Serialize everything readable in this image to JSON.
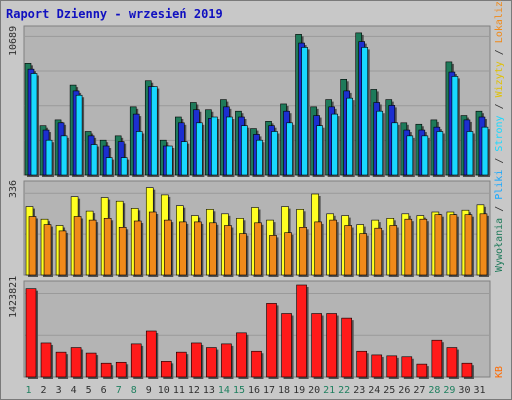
{
  "title": "Raport Dzienny -  wrzesień 2019",
  "colors": {
    "background": "#c8c8c8",
    "plot_bg": "#b4b4b4",
    "grid": "#9a9a9a",
    "visits": "#1e7a5a",
    "pages": "#1c2fd0",
    "files": "#18d8ff",
    "hits": "#ffff22",
    "sites": "#f08a1a",
    "kb": "#ff1a1a",
    "title": "#1010c0",
    "weekend_label": "#208060",
    "weekday_label": "#303030"
  },
  "side_labels": {
    "top": [
      {
        "text": "Wywołania",
        "color": "#1e7a5a"
      },
      {
        "text": " / ",
        "color": "#303030"
      },
      {
        "text": "Pliki",
        "color": "#18a8ff"
      },
      {
        "text": " / ",
        "color": "#303030"
      },
      {
        "text": "Strony",
        "color": "#18d8ff"
      },
      {
        "text": " / ",
        "color": "#303030"
      },
      {
        "text": "Wizyty",
        "color": "#e0c000"
      },
      {
        "text": " / ",
        "color": "#303030"
      },
      {
        "text": "Lokalizacje",
        "color": "#f08a1a"
      }
    ],
    "bottom": "KB"
  },
  "chart_data": [
    {
      "type": "bar",
      "panel": "top",
      "ymax_label": "10689",
      "categories": [
        "1",
        "2",
        "3",
        "4",
        "5",
        "6",
        "7",
        "8",
        "9",
        "10",
        "11",
        "12",
        "13",
        "14",
        "15",
        "16",
        "17",
        "18",
        "19",
        "20",
        "21",
        "22",
        "23",
        "24",
        "25",
        "26",
        "27",
        "28",
        "29",
        "30",
        "31"
      ],
      "series": [
        {
          "name": "Wywołania",
          "values": [
            10689,
            0,
            0,
            0,
            0,
            0,
            0,
            0,
            0,
            0,
            0,
            0,
            0,
            0,
            0,
            0,
            0,
            0,
            0,
            0,
            0,
            0,
            0,
            0,
            0,
            0,
            0,
            0,
            0,
            0,
            0
          ]
        },
        {
          "name": "Pliki",
          "values": [
            0,
            0,
            0,
            0,
            0,
            0,
            0,
            0,
            0,
            0,
            0,
            0,
            0,
            0,
            0,
            0,
            0,
            0,
            0,
            0,
            0,
            0,
            0,
            0,
            0,
            0,
            0,
            0,
            0,
            0,
            0
          ]
        },
        {
          "name": "Strony",
          "values": [
            0,
            0,
            0,
            0,
            0,
            0,
            0,
            0,
            0,
            0,
            0,
            0,
            0,
            0,
            0,
            0,
            0,
            0,
            0,
            0,
            0,
            0,
            0,
            0,
            0,
            0,
            0,
            0,
            0,
            0,
            0
          ]
        }
      ],
      "rel": {
        "visits": [
          0.77,
          0.34,
          0.38,
          0.62,
          0.3,
          0.24,
          0.27,
          0.47,
          0.65,
          0.24,
          0.4,
          0.5,
          0.45,
          0.52,
          0.44,
          0.32,
          0.37,
          0.49,
          0.97,
          0.47,
          0.52,
          0.66,
          0.98,
          0.59,
          0.52,
          0.36,
          0.35,
          0.38,
          0.78,
          0.41,
          0.44
        ],
        "pages": [
          0.73,
          0.31,
          0.36,
          0.58,
          0.27,
          0.2,
          0.23,
          0.42,
          0.61,
          0.2,
          0.36,
          0.45,
          0.39,
          0.47,
          0.4,
          0.28,
          0.34,
          0.44,
          0.91,
          0.41,
          0.47,
          0.58,
          0.92,
          0.5,
          0.48,
          0.31,
          0.31,
          0.33,
          0.71,
          0.38,
          0.4
        ],
        "files": [
          0.7,
          0.24,
          0.27,
          0.55,
          0.21,
          0.12,
          0.12,
          0.3,
          0.61,
          0.2,
          0.23,
          0.36,
          0.4,
          0.4,
          0.34,
          0.24,
          0.3,
          0.36,
          0.88,
          0.34,
          0.42,
          0.53,
          0.88,
          0.44,
          0.36,
          0.27,
          0.27,
          0.3,
          0.68,
          0.3,
          0.33
        ]
      }
    },
    {
      "type": "bar",
      "panel": "middle",
      "ymax_label": "336",
      "categories": [
        "1",
        "2",
        "3",
        "4",
        "5",
        "6",
        "7",
        "8",
        "9",
        "10",
        "11",
        "12",
        "13",
        "14",
        "15",
        "16",
        "17",
        "18",
        "19",
        "20",
        "21",
        "22",
        "23",
        "24",
        "25",
        "26",
        "27",
        "28",
        "29",
        "30",
        "31"
      ],
      "series": [
        {
          "name": "Wizyty",
          "rel": [
            0.76,
            0.62,
            0.55,
            0.87,
            0.71,
            0.86,
            0.82,
            0.74,
            0.97,
            0.89,
            0.77,
            0.66,
            0.73,
            0.68,
            0.63,
            0.75,
            0.61,
            0.76,
            0.73,
            0.9,
            0.68,
            0.66,
            0.56,
            0.61,
            0.63,
            0.68,
            0.66,
            0.7,
            0.7,
            0.72,
            0.78
          ]
        },
        {
          "name": "Lokalizacje",
          "rel": [
            0.65,
            0.56,
            0.49,
            0.65,
            0.61,
            0.63,
            0.53,
            0.6,
            0.7,
            0.61,
            0.59,
            0.59,
            0.58,
            0.55,
            0.46,
            0.58,
            0.44,
            0.47,
            0.53,
            0.59,
            0.61,
            0.55,
            0.46,
            0.52,
            0.55,
            0.62,
            0.62,
            0.67,
            0.67,
            0.67,
            0.68
          ]
        }
      ]
    },
    {
      "type": "bar",
      "panel": "bottom",
      "ymax_label": "1423821",
      "categories": [
        "1",
        "2",
        "3",
        "4",
        "5",
        "6",
        "7",
        "8",
        "9",
        "10",
        "11",
        "12",
        "13",
        "14",
        "15",
        "16",
        "17",
        "18",
        "19",
        "20",
        "21",
        "22",
        "23",
        "24",
        "25",
        "26",
        "27",
        "28",
        "29",
        "30",
        "31"
      ],
      "series": [
        {
          "name": "KB",
          "rel": [
            0.96,
            0.37,
            0.27,
            0.32,
            0.26,
            0.15,
            0.16,
            0.36,
            0.5,
            0.17,
            0.27,
            0.37,
            0.32,
            0.36,
            0.48,
            0.28,
            0.8,
            0.69,
            1.0,
            0.69,
            0.69,
            0.64,
            0.28,
            0.24,
            0.23,
            0.22,
            0.14,
            0.4,
            0.32,
            0.15,
            0.0
          ]
        }
      ]
    }
  ],
  "x_labels": [
    "1",
    "2",
    "3",
    "4",
    "5",
    "6",
    "7",
    "8",
    "9",
    "10",
    "11",
    "12",
    "13",
    "14",
    "15",
    "16",
    "17",
    "18",
    "19",
    "20",
    "21",
    "22",
    "23",
    "24",
    "25",
    "26",
    "27",
    "28",
    "29",
    "30",
    "31"
  ],
  "weekend_days": [
    1,
    7,
    8,
    14,
    15,
    21,
    22,
    28,
    29
  ]
}
